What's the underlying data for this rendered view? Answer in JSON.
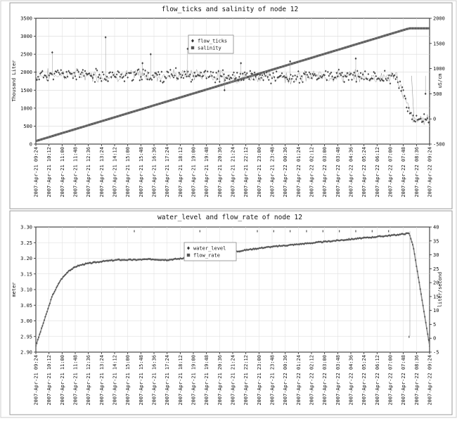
{
  "chart_data": [
    {
      "type": "line",
      "title": "flow_ticks and salinity of node 12",
      "ylabel": "Thousand Liter",
      "y2label": "uS/cm",
      "ylim": [
        0,
        3500
      ],
      "y2lim": [
        -500,
        2000
      ],
      "yticks": [
        "0",
        "500",
        "1000",
        "1500",
        "2000",
        "2500",
        "3000",
        "3500"
      ],
      "y2ticks": [
        "-500",
        "0",
        "500",
        "1000",
        "1500",
        "2000"
      ],
      "legend_position": "top-center",
      "grid": true,
      "series": [
        {
          "name": "flow_ticks",
          "axis": "left",
          "marker": "diamond",
          "color": "#444444",
          "x": [
            0,
            4,
            8,
            12,
            16,
            20,
            24,
            28,
            32,
            36,
            40,
            44,
            46,
            48
          ],
          "y": [
            1900,
            1950,
            1900,
            1920,
            1900,
            1950,
            1850,
            1880,
            1860,
            1900,
            1870,
            1880,
            650,
            700
          ],
          "outliers": [
            [
              2,
              2550
            ],
            [
              8.5,
              2970
            ],
            [
              13,
              2250
            ],
            [
              14,
              2500
            ],
            [
              18.5,
              2650
            ],
            [
              23,
              1500
            ],
            [
              25,
              2250
            ],
            [
              31,
              2300
            ],
            [
              39,
              2380
            ],
            [
              47.5,
              1400
            ]
          ]
        },
        {
          "name": "salinity",
          "axis": "right",
          "marker": "square",
          "color": "#777777",
          "x": [
            0,
            45.5,
            48
          ],
          "y": [
            -440,
            1800,
            1800
          ]
        }
      ]
    },
    {
      "type": "line",
      "title": "water_level and flow_rate of node 12",
      "ylabel": "meter",
      "y2label": "liter/second",
      "ylim": [
        2.9,
        3.3
      ],
      "y2lim": [
        -5,
        40
      ],
      "yticks": [
        "2.90",
        "2.95",
        "3.00",
        "3.05",
        "3.10",
        "3.15",
        "3.20",
        "3.25",
        "3.30"
      ],
      "y2ticks": [
        "-5",
        "0",
        "5",
        "10",
        "15",
        "20",
        "25",
        "30",
        "35",
        "40"
      ],
      "legend_position": "top-center",
      "grid": true,
      "series": [
        {
          "name": "water_level",
          "axis": "left",
          "marker": "diamond",
          "color": "#555555",
          "x": [
            0,
            1,
            2,
            3,
            4,
            5,
            6,
            8,
            10,
            12,
            14,
            16,
            18,
            20,
            22,
            24,
            26,
            28,
            30,
            32,
            34,
            36,
            38,
            40,
            42,
            44,
            45.5,
            46,
            47,
            48
          ],
          "y": [
            2.92,
            3.0,
            3.08,
            3.13,
            3.16,
            3.175,
            3.182,
            3.19,
            3.195,
            3.195,
            3.197,
            3.195,
            3.2,
            3.2,
            3.218,
            3.22,
            3.228,
            3.235,
            3.24,
            3.245,
            3.25,
            3.255,
            3.26,
            3.265,
            3.27,
            3.275,
            3.28,
            3.24,
            3.08,
            2.92
          ]
        },
        {
          "name": "flow_rate",
          "axis": "right",
          "marker": "square",
          "color": "#555555",
          "x": [
            0,
            45.5,
            48
          ],
          "y": [
            null,
            null,
            null
          ],
          "spikes": [
            [
              12,
              38.5
            ],
            [
              20,
              38.5
            ],
            [
              27,
              38.5
            ],
            [
              29,
              38.5
            ],
            [
              31,
              38.5
            ],
            [
              33,
              38.5
            ],
            [
              35,
              38.5
            ],
            [
              37,
              38.5
            ],
            [
              39,
              38.5
            ],
            [
              41,
              38.5
            ],
            [
              43,
              38.5
            ],
            [
              45.5,
              0.5
            ]
          ]
        }
      ]
    }
  ],
  "x_ticks": [
    "2007-Apr-21 09:24",
    "2007-Apr-21 10:12",
    "2007-Apr-21 11:00",
    "2007-Apr-21 11:48",
    "2007-Apr-21 12:36",
    "2007-Apr-21 13:24",
    "2007-Apr-21 14:12",
    "2007-Apr-21 15:00",
    "2007-Apr-21 15:48",
    "2007-Apr-21 16:36",
    "2007-Apr-21 17:24",
    "2007-Apr-21 18:12",
    "2007-Apr-21 19:00",
    "2007-Apr-21 19:48",
    "2007-Apr-21 20:36",
    "2007-Apr-21 21:24",
    "2007-Apr-21 22:12",
    "2007-Apr-21 23:00",
    "2007-Apr-21 23:48",
    "2007-Apr-22 00:36",
    "2007-Apr-22 01:24",
    "2007-Apr-22 02:12",
    "2007-Apr-22 03:00",
    "2007-Apr-22 03:48",
    "2007-Apr-22 04:36",
    "2007-Apr-22 05:24",
    "2007-Apr-22 06:12",
    "2007-Apr-22 07:00",
    "2007-Apr-22 07:48",
    "2007-Apr-22 08:36",
    "2007-Apr-22 09:24"
  ]
}
